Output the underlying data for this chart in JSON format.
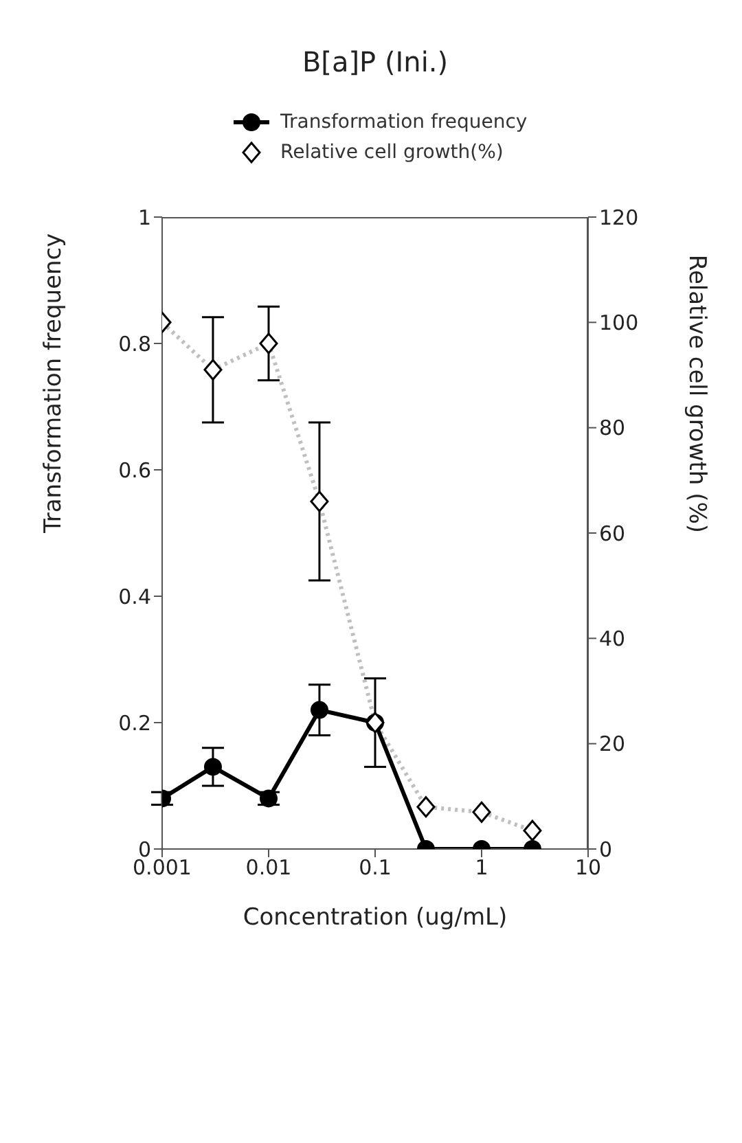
{
  "chart_data": {
    "type": "line",
    "title": "B[a]P (Ini.)",
    "xlabel": "Concentration (ug/mL)",
    "ylabel": "Transformation frequency",
    "y2label": "Relative cell growth (%)",
    "x": [
      0.001,
      0.003,
      0.01,
      0.03,
      0.1,
      0.3,
      1,
      3
    ],
    "log": "x",
    "xlim": [
      0.001,
      10
    ],
    "xticks": [
      0.001,
      0.01,
      0.1,
      1,
      10
    ],
    "ylim": [
      0,
      1
    ],
    "yticks": [
      0,
      0.2,
      0.4,
      0.6,
      0.8,
      1
    ],
    "y2lim": [
      0,
      120
    ],
    "y2ticks": [
      0,
      20,
      40,
      60,
      80,
      100,
      120
    ],
    "legend": "top left",
    "grid": false,
    "series": [
      {
        "name": "Transformation frequency",
        "color": "#000000",
        "marker": "circle",
        "line_style": "solid",
        "values": [
          0.08,
          0.13,
          0.08,
          0.22,
          0.2,
          0,
          0,
          0
        ],
        "errors": [
          0.01,
          0.03,
          0.01,
          0.04,
          0.07,
          null,
          null,
          null
        ]
      },
      {
        "name": "Relative cell growth(%)",
        "color": "#000000",
        "axis": "y2",
        "marker": "diamond",
        "line_style": "dotted",
        "values": [
          100,
          91,
          96,
          66,
          24,
          8,
          7,
          3.5
        ],
        "errors": [
          null,
          10,
          7,
          15,
          null,
          null,
          null,
          null
        ]
      }
    ]
  }
}
